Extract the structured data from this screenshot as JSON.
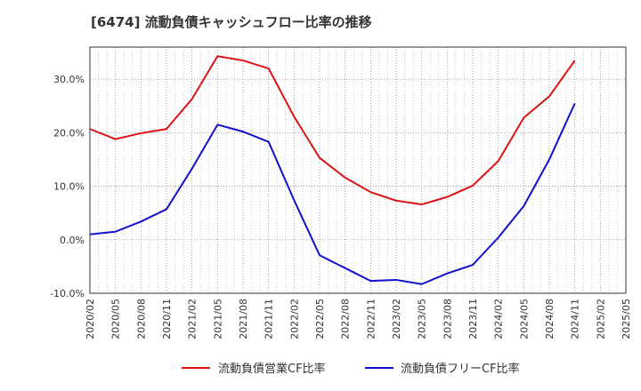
{
  "chart_data": {
    "type": "line",
    "title": "[6474]  流動負債キャッシュフロー比率の推移",
    "xlabel": "",
    "ylabel": "",
    "x": [
      "2020/02",
      "2020/05",
      "2020/08",
      "2020/11",
      "2021/02",
      "2021/05",
      "2021/08",
      "2021/11",
      "2022/02",
      "2022/05",
      "2022/08",
      "2022/11",
      "2023/02",
      "2023/05",
      "2023/08",
      "2023/11",
      "2024/02",
      "2024/05",
      "2024/08",
      "2024/11",
      "2025/02",
      "2025/05"
    ],
    "ylim": [
      -10,
      36
    ],
    "yticks": [
      -10,
      0,
      10,
      20,
      30
    ],
    "ytick_labels": [
      "-10.0%",
      "0.0%",
      "10.0%",
      "20.0%",
      "30.0%"
    ],
    "grid": true,
    "legend_position": "bottom",
    "series": [
      {
        "name": "流動負債営業CF比率",
        "color": "#dd1111",
        "values": [
          20.7,
          18.8,
          19.9,
          20.7,
          26.3,
          34.3,
          33.5,
          32.0,
          23.0,
          15.3,
          11.6,
          8.9,
          7.3,
          6.6,
          8.0,
          10.1,
          14.7,
          22.8,
          26.8,
          33.5,
          null,
          null
        ]
      },
      {
        "name": "流動負債フリーCF比率",
        "color": "#1111cc",
        "values": [
          1.0,
          1.5,
          3.4,
          5.7,
          13.3,
          21.5,
          20.2,
          18.3,
          7.4,
          -2.9,
          -5.3,
          -7.7,
          -7.5,
          -8.3,
          -6.3,
          -4.7,
          0.4,
          6.3,
          15.0,
          25.5,
          null,
          null
        ]
      }
    ]
  }
}
